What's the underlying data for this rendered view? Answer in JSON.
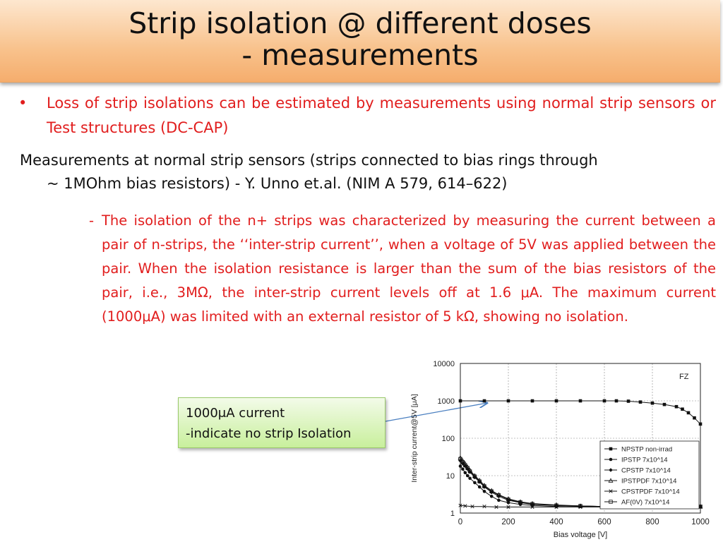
{
  "slide": {
    "title_line1": "Strip isolation @ different doses",
    "title_line2": "- measurements",
    "bullet": "Loss of strip isolations can be estimated by measurements using normal strip sensors or Test structures (DC-CAP)",
    "bullet_symbol": "•",
    "paragraph_line1": "Measurements at normal strip sensors (strips connected to bias rings through",
    "paragraph_line2": "~ 1MOhm bias resistors) - Y. Unno et.al. (NIM A 579, 614–622)",
    "dash": "-",
    "sub_paragraph": "The isolation of the n+ strips was characterized by measuring the current between a pair of n-strips, the ‘‘inter-strip current’’, when a voltage of 5V was applied between the pair. When the isolation resistance is larger than the sum of the bias resistors of the pair, i.e., 3MΩ, the inter-strip current levels off at 1.6 μA. The maximum current (1000μA) was limited with an external resistor of 5 kΩ, showing no isolation."
  },
  "callout": {
    "line1": "1000μA current",
    "line2": "-indicate no strip Isolation"
  },
  "colors": {
    "red_text": "#e11d1d",
    "title_gradient": "#f8c28c",
    "callout_fill": "#c8ef9c"
  },
  "chart_data": {
    "type": "scatter",
    "annotation": "FZ",
    "xlabel": "Bias voltage [V]",
    "ylabel": "Inter-strip current@5V [μA]",
    "xlim": [
      0,
      1000
    ],
    "ylim": [
      1,
      10000
    ],
    "log_y": true,
    "x_ticks": [
      "0",
      "200",
      "400",
      "600",
      "800",
      "1000"
    ],
    "y_ticks": [
      "1",
      "10",
      "100",
      "1000",
      "10000"
    ],
    "grid": true,
    "legend_position": "bottom-right",
    "series": [
      {
        "name": "NPSTP non-irrad",
        "marker": "square-filled",
        "x": [
          0,
          100,
          200,
          300,
          400,
          500,
          600,
          650,
          700,
          750,
          800,
          850,
          900,
          925,
          950,
          975,
          1000
        ],
        "y": [
          1000,
          1000,
          1000,
          1000,
          1000,
          1000,
          1000,
          1000,
          980,
          930,
          870,
          800,
          700,
          600,
          480,
          350,
          240
        ]
      },
      {
        "name": "IPSTP 7x10^14",
        "marker": "circle-filled",
        "x": [
          0,
          10,
          20,
          30,
          40,
          60,
          80,
          100,
          130,
          160,
          200,
          250,
          300,
          400,
          500,
          600,
          700,
          800,
          900,
          1000
        ],
        "y": [
          18,
          15,
          12,
          10,
          8.5,
          6.5,
          5,
          3.8,
          2.8,
          2.2,
          1.9,
          1.7,
          1.6,
          1.5,
          1.5,
          1.5,
          1.45,
          1.45,
          1.45,
          1.45
        ]
      },
      {
        "name": "CPSTP 7x10^14",
        "marker": "diamond-filled",
        "x": [
          0,
          10,
          20,
          30,
          40,
          60,
          80,
          100,
          130,
          160,
          200,
          250,
          300,
          400,
          500,
          600,
          700,
          800,
          900,
          1000
        ],
        "y": [
          25,
          21,
          18,
          15,
          12.5,
          9,
          6.8,
          5,
          3.6,
          2.8,
          2.2,
          1.9,
          1.7,
          1.6,
          1.55,
          1.5,
          1.5,
          1.5,
          1.5,
          1.5
        ]
      },
      {
        "name": "IPSTPDF 7x10^14",
        "marker": "triangle-open",
        "x": [
          0,
          10,
          20,
          30,
          40,
          60,
          80,
          100,
          130,
          160,
          200,
          250,
          300,
          400,
          500,
          600,
          700,
          800,
          900,
          1000
        ],
        "y": [
          30,
          25,
          21,
          17,
          14,
          10,
          7.5,
          5.5,
          4,
          3.1,
          2.4,
          2.0,
          1.8,
          1.65,
          1.55,
          1.5,
          1.5,
          1.5,
          1.5,
          1.5
        ]
      },
      {
        "name": "CPSTPDF 7x10^14",
        "marker": "x",
        "x": [
          0,
          20,
          50,
          100,
          150,
          200,
          300,
          400,
          500,
          600,
          700,
          800,
          900,
          1000
        ],
        "y": [
          1.6,
          1.55,
          1.5,
          1.5,
          1.45,
          1.45,
          1.45,
          1.45,
          1.45,
          1.45,
          1.45,
          1.45,
          1.45,
          1.45
        ]
      },
      {
        "name": "AF(0V) 7x10^14",
        "marker": "square-open",
        "x": [
          0,
          10,
          20,
          30,
          40,
          60,
          80,
          100,
          130,
          160,
          200,
          250,
          300,
          400,
          500,
          600,
          700,
          800,
          900,
          1000
        ],
        "y": [
          28,
          23,
          19,
          16,
          13,
          9.5,
          7,
          5.2,
          3.8,
          3,
          2.3,
          1.95,
          1.75,
          1.6,
          1.55,
          1.5,
          1.5,
          1.5,
          1.5,
          1.5
        ]
      }
    ]
  }
}
